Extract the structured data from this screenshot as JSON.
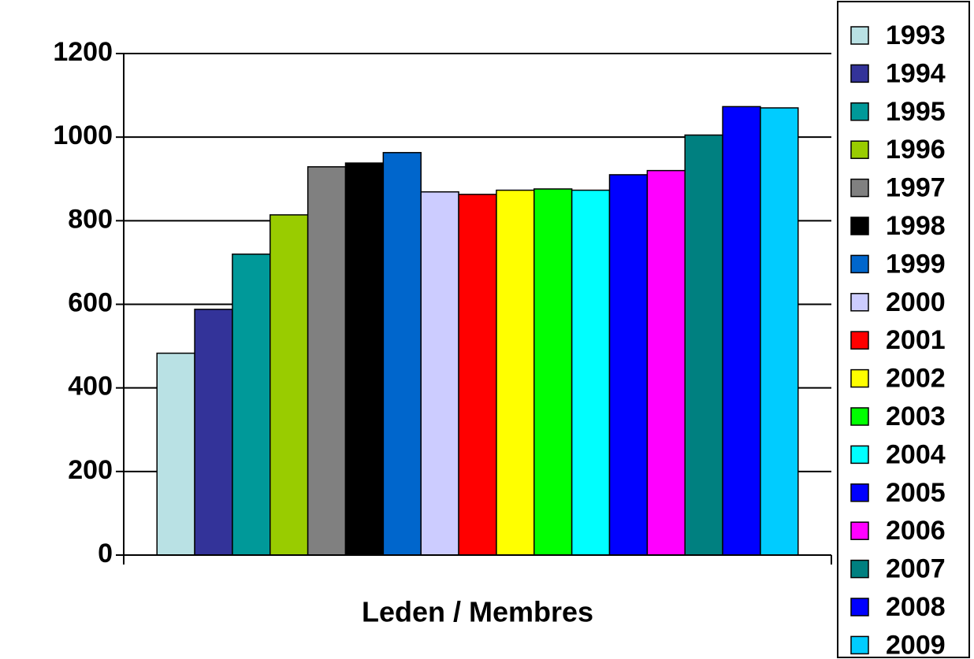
{
  "chart_data": {
    "type": "bar",
    "categories": [
      "Leden / Membres"
    ],
    "series": [
      {
        "name": "1993",
        "color": "#b9e1e4",
        "values": [
          483
        ]
      },
      {
        "name": "1994",
        "color": "#333399",
        "values": [
          588
        ]
      },
      {
        "name": "1995",
        "color": "#009999",
        "values": [
          720
        ]
      },
      {
        "name": "1996",
        "color": "#99cc00",
        "values": [
          814
        ]
      },
      {
        "name": "1997",
        "color": "#808080",
        "values": [
          929
        ]
      },
      {
        "name": "1998",
        "color": "#000000",
        "values": [
          938
        ]
      },
      {
        "name": "1999",
        "color": "#0066cc",
        "values": [
          963
        ]
      },
      {
        "name": "2000",
        "color": "#ccccff",
        "values": [
          869
        ]
      },
      {
        "name": "2001",
        "color": "#ff0000",
        "values": [
          863
        ]
      },
      {
        "name": "2002",
        "color": "#ffff00",
        "values": [
          873
        ]
      },
      {
        "name": "2003",
        "color": "#00ff00",
        "values": [
          876
        ]
      },
      {
        "name": "2004",
        "color": "#00ffff",
        "values": [
          873
        ]
      },
      {
        "name": "2005",
        "color": "#0000ff",
        "values": [
          910
        ]
      },
      {
        "name": "2006",
        "color": "#ff00ff",
        "values": [
          920
        ]
      },
      {
        "name": "2007",
        "color": "#008080",
        "values": [
          1005
        ]
      },
      {
        "name": "2008",
        "color": "#0000ff",
        "values": [
          1073
        ]
      },
      {
        "name": "2009",
        "color": "#00ccff",
        "values": [
          1070
        ]
      }
    ],
    "ylim": [
      0,
      1200
    ],
    "yticks": [
      0,
      200,
      400,
      600,
      800,
      1000,
      1200
    ],
    "grid": true,
    "legend": "right"
  }
}
